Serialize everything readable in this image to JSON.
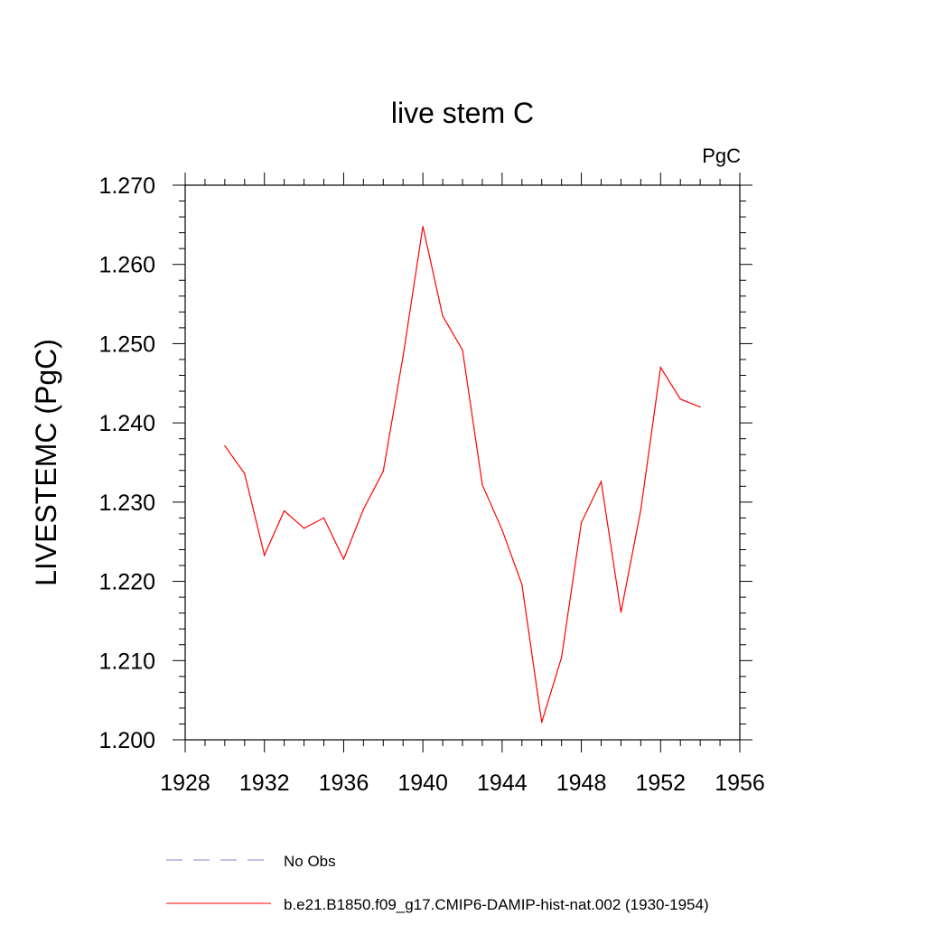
{
  "chart_data": {
    "type": "line",
    "title": "live stem C",
    "units": "PgC",
    "xlabel": "",
    "ylabel": "LIVESTEMC  (PgC)",
    "xlim": [
      1928,
      1956
    ],
    "ylim": [
      1.2,
      1.27
    ],
    "x_ticks": [
      "1928",
      "1932",
      "1936",
      "1940",
      "1944",
      "1948",
      "1952",
      "1956"
    ],
    "y_ticks": [
      "1.200",
      "1.210",
      "1.220",
      "1.230",
      "1.240",
      "1.250",
      "1.260",
      "1.270"
    ],
    "legend_placement": "bottom",
    "series": [
      {
        "name": "b.e21.B1850.f09_g17.CMIP6-DAMIP-hist-nat.002 (1930-1954)",
        "color": "#ff0000",
        "style": "solid",
        "x": [
          1930,
          1931,
          1932,
          1933,
          1934,
          1935,
          1936,
          1937,
          1938,
          1939,
          1940,
          1941,
          1942,
          1943,
          1944,
          1945,
          1946,
          1947,
          1948,
          1949,
          1950,
          1951,
          1952,
          1953,
          1954
        ],
        "y": [
          1.2371,
          1.2336,
          1.2233,
          1.2289,
          1.2267,
          1.228,
          1.2228,
          1.2291,
          1.2339,
          1.2484,
          1.2648,
          1.2535,
          1.2492,
          1.2322,
          1.2265,
          1.2196,
          1.2022,
          1.2104,
          1.2274,
          1.2326,
          1.2161,
          1.229,
          1.247,
          1.243,
          1.242
        ]
      }
    ],
    "legend": [
      {
        "label": "No Obs",
        "color": "#8080c0",
        "style": "dashed"
      },
      {
        "label": "b.e21.B1850.f09_g17.CMIP6-DAMIP-hist-nat.002 (1930-1954)",
        "color": "#ff0000",
        "style": "solid"
      }
    ]
  }
}
